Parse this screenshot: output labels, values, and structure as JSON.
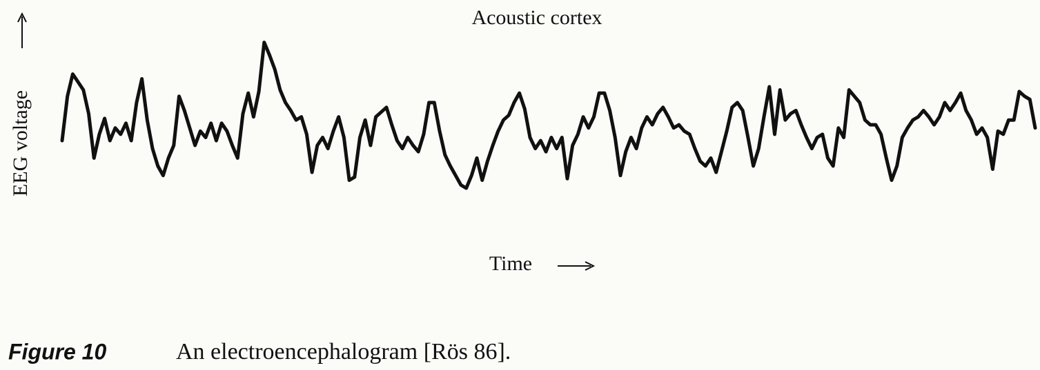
{
  "chart_data": {
    "type": "line",
    "title": "Acoustic cortex",
    "ylabel": "EEG voltage",
    "xlabel": "Time",
    "figure_label": "Figure 10",
    "caption": "An electroencephalogram [Rös 86].",
    "color": "#111111",
    "ylim": [
      0,
      100
    ],
    "values": [
      33,
      61,
      75,
      70,
      65,
      50,
      22,
      37,
      47,
      33,
      41,
      37,
      44,
      33,
      57,
      72,
      46,
      28,
      17,
      11,
      22,
      30,
      61,
      52,
      41,
      30,
      39,
      35,
      44,
      33,
      44,
      39,
      30,
      22,
      50,
      63,
      48,
      64,
      95,
      87,
      78,
      65,
      57,
      52,
      46,
      48,
      37,
      13,
      30,
      35,
      28,
      39,
      48,
      35,
      8,
      10,
      35,
      46,
      30,
      48,
      51,
      54,
      43,
      33,
      28,
      35,
      30,
      26,
      37,
      57,
      57,
      39,
      24,
      17,
      11,
      5,
      3,
      11,
      22,
      8,
      20,
      30,
      39,
      46,
      49,
      57,
      63,
      53,
      35,
      28,
      33,
      26,
      35,
      28,
      35,
      9,
      30,
      37,
      48,
      41,
      48,
      63,
      63,
      52,
      35,
      11,
      26,
      35,
      28,
      41,
      48,
      43,
      50,
      54,
      48,
      41,
      43,
      39,
      37,
      28,
      20,
      17,
      22,
      13,
      26,
      39,
      54,
      57,
      52,
      35,
      17,
      28,
      48,
      67,
      37,
      65,
      46,
      50,
      52,
      43,
      35,
      28,
      35,
      37,
      22,
      17,
      41,
      35,
      65,
      61,
      57,
      46,
      43,
      43,
      37,
      22,
      8,
      17,
      35,
      41,
      46,
      48,
      52,
      48,
      43,
      48,
      57,
      52,
      57,
      63,
      52,
      46,
      37,
      41,
      35,
      15,
      39,
      37,
      46,
      46,
      64,
      61,
      59,
      41
    ]
  }
}
